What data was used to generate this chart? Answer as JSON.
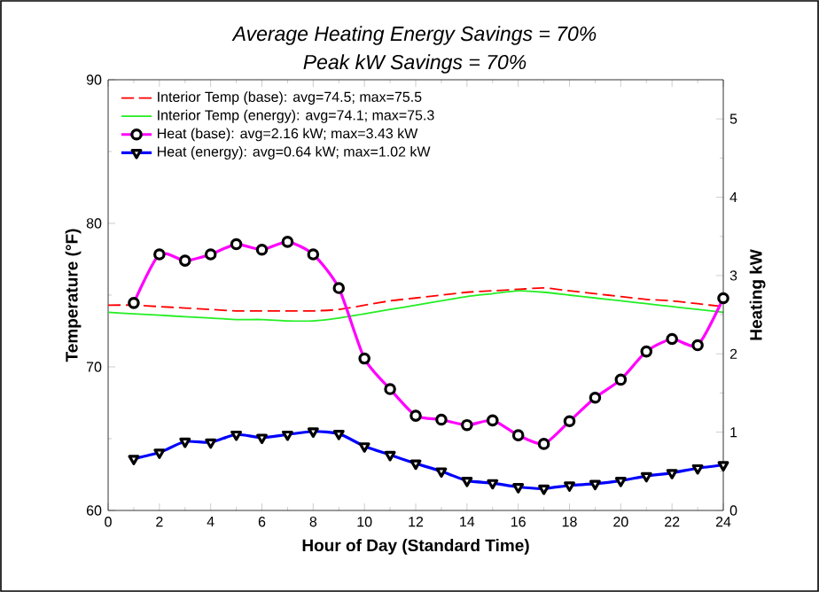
{
  "chart_data": {
    "type": "line",
    "title": "Average Heating Energy Savings = 70%",
    "subtitle": "Peak kW Savings = 70%",
    "xlabel": "Hour of Day (Standard Time)",
    "ylabel": "Temperature (°F)",
    "y2label": "Heating kW",
    "xlim": [
      0,
      24
    ],
    "xticks": [
      0,
      2,
      4,
      6,
      8,
      10,
      12,
      14,
      16,
      18,
      20,
      22,
      24
    ],
    "ylim": [
      60,
      90
    ],
    "yticks": [
      60,
      70,
      80,
      90
    ],
    "y2lim": [
      0,
      5.5
    ],
    "y2ticks": [
      0,
      1,
      2,
      3,
      4,
      5
    ],
    "legend": "top left",
    "series": [
      {
        "name": "Interior Temp (base): avg=74.5; max=75.5",
        "color": "#ff0000",
        "line_style": "dashed",
        "marker": "none",
        "x": [
          0,
          1,
          2,
          3,
          4,
          5,
          6,
          7,
          8,
          9,
          10,
          11,
          12,
          13,
          14,
          15,
          16,
          17,
          18,
          19,
          20,
          21,
          22,
          23,
          24
        ],
        "values": [
          74.3,
          74.3,
          74.2,
          74.1,
          74.0,
          73.9,
          73.9,
          73.9,
          73.9,
          74.0,
          74.3,
          74.6,
          74.8,
          75.0,
          75.2,
          75.3,
          75.4,
          75.5,
          75.3,
          75.1,
          74.9,
          74.7,
          74.6,
          74.4,
          74.2
        ]
      },
      {
        "name": "Interior Temp (energy): avg=74.1; max=75.3",
        "color": "#22ee22",
        "line_style": "solid",
        "marker": "none",
        "x": [
          0,
          1,
          2,
          3,
          4,
          5,
          6,
          7,
          8,
          9,
          10,
          11,
          12,
          13,
          14,
          15,
          16,
          17,
          18,
          19,
          20,
          21,
          22,
          23,
          24
        ],
        "values": [
          73.8,
          73.7,
          73.6,
          73.5,
          73.4,
          73.3,
          73.3,
          73.2,
          73.2,
          73.4,
          73.7,
          74.0,
          74.3,
          74.6,
          74.9,
          75.1,
          75.3,
          75.2,
          75.0,
          74.8,
          74.6,
          74.4,
          74.2,
          74.0,
          73.8
        ]
      },
      {
        "name": "Heat (base): avg=2.16 kW; max=3.43 kW",
        "color": "#ff00ff",
        "line_style": "solid",
        "marker": "circle",
        "axis": "y2",
        "x": [
          1,
          2,
          3,
          4,
          5,
          6,
          7,
          8,
          9,
          10,
          11,
          12,
          13,
          14,
          15,
          16,
          17,
          18,
          19,
          20,
          21,
          22,
          23,
          24
        ],
        "values": [
          2.65,
          3.27,
          3.19,
          3.27,
          3.4,
          3.33,
          3.43,
          3.27,
          2.84,
          1.94,
          1.55,
          1.21,
          1.16,
          1.09,
          1.15,
          0.96,
          0.85,
          1.14,
          1.44,
          1.67,
          2.03,
          2.19,
          2.11,
          2.71
        ]
      },
      {
        "name": "Heat (energy): avg=0.64 kW; max=1.02 kW",
        "color": "#0000ff",
        "line_style": "solid",
        "marker": "triangle",
        "axis": "y2",
        "x": [
          1,
          2,
          3,
          4,
          5,
          6,
          7,
          8,
          9,
          10,
          11,
          12,
          13,
          14,
          15,
          16,
          17,
          18,
          19,
          20,
          21,
          22,
          23,
          24
        ],
        "values": [
          0.66,
          0.74,
          0.88,
          0.87,
          0.97,
          0.93,
          0.97,
          1.01,
          0.98,
          0.82,
          0.71,
          0.6,
          0.5,
          0.38,
          0.35,
          0.3,
          0.28,
          0.32,
          0.34,
          0.38,
          0.44,
          0.48,
          0.54,
          0.58
        ]
      }
    ]
  }
}
